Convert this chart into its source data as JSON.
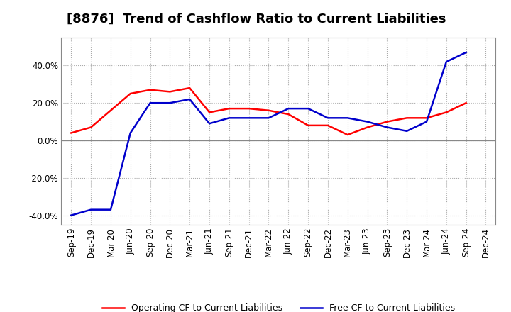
{
  "title": "[8876]  Trend of Cashflow Ratio to Current Liabilities",
  "labels": [
    "Sep-19",
    "Dec-19",
    "Mar-20",
    "Jun-20",
    "Sep-20",
    "Dec-20",
    "Mar-21",
    "Jun-21",
    "Sep-21",
    "Dec-21",
    "Mar-22",
    "Jun-22",
    "Sep-22",
    "Dec-22",
    "Mar-23",
    "Jun-23",
    "Sep-23",
    "Dec-23",
    "Mar-24",
    "Jun-24",
    "Sep-24",
    "Dec-24"
  ],
  "operating_cf": [
    4.0,
    7.0,
    16.0,
    25.0,
    27.0,
    26.0,
    28.0,
    15.0,
    17.0,
    17.0,
    16.0,
    14.0,
    8.0,
    8.0,
    3.0,
    7.0,
    10.0,
    12.0,
    12.0,
    15.0,
    20.0,
    null
  ],
  "free_cf": [
    -40.0,
    -37.0,
    -37.0,
    4.0,
    20.0,
    20.0,
    22.0,
    9.0,
    12.0,
    12.0,
    12.0,
    17.0,
    17.0,
    12.0,
    12.0,
    10.0,
    7.0,
    5.0,
    10.0,
    42.0,
    47.0,
    null
  ],
  "ylim": [
    -45,
    55
  ],
  "yticks": [
    -40.0,
    -20.0,
    0.0,
    20.0,
    40.0
  ],
  "ytick_labels": [
    "-40.0%",
    "-20.0%",
    "0.0%",
    "20.0%",
    "40.0%"
  ],
  "operating_color": "#FF0000",
  "free_color": "#0000CC",
  "background_color": "#FFFFFF",
  "plot_bg_color": "#FFFFFF",
  "grid_color": "#AAAAAA",
  "spine_color": "#888888",
  "title_fontsize": 13,
  "tick_fontsize": 8.5,
  "legend_fontsize": 9,
  "linewidth": 1.8,
  "legend_labels": [
    "Operating CF to Current Liabilities",
    "Free CF to Current Liabilities"
  ]
}
